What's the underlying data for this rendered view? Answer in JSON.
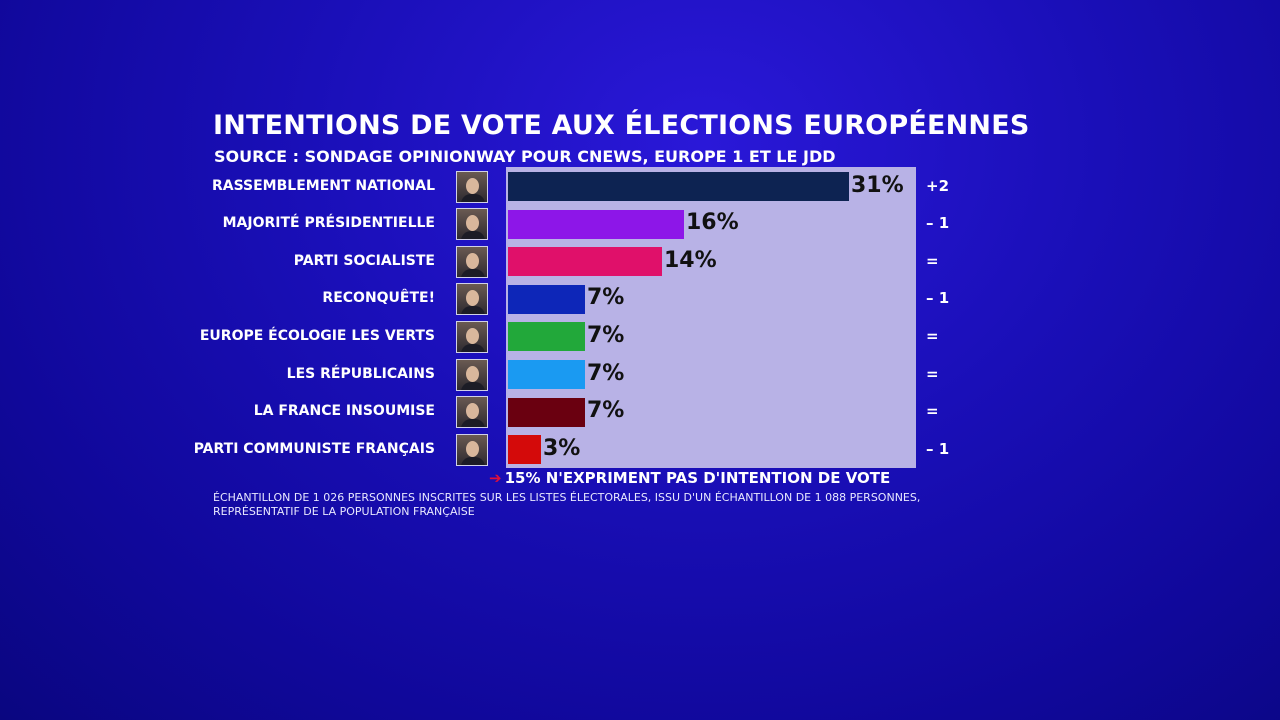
{
  "chart_data": {
    "type": "bar",
    "orientation": "horizontal",
    "title": "INTENTIONS DE VOTE AUX ÉLECTIONS EUROPÉENNES",
    "subtitle": "SOURCE : SONDAGE OPINIONWAY POUR CNEWS, EUROPE 1 ET LE JDD",
    "categories": [
      "RASSEMBLEMENT NATIONAL",
      "MAJORITÉ PRÉSIDENTIELLE",
      "PARTI SOCIALISTE",
      "RECONQUÊTE!",
      "EUROPE ÉCOLOGIE LES VERTS",
      "LES RÉPUBLICAINS",
      "LA FRANCE INSOUMISE",
      "PARTI COMMUNISTE FRANÇAIS"
    ],
    "values": [
      31,
      16,
      14,
      7,
      7,
      7,
      7,
      3
    ],
    "value_labels": [
      "31%",
      "16%",
      "14%",
      "7%",
      "7%",
      "7%",
      "7%",
      "3%"
    ],
    "changes": [
      "+2",
      "– 1",
      "=",
      "– 1",
      "=",
      "=",
      "=",
      "– 1"
    ],
    "colors": [
      "#0d2352",
      "#8d16e8",
      "#e0106a",
      "#0d26b8",
      "#22a83a",
      "#1a9af2",
      "#6a0010",
      "#d40a0a"
    ],
    "xlim": [
      0,
      36
    ],
    "grid": false,
    "note": "15% N'EXPRIMENT PAS D'INTENTION DE VOTE",
    "sample": "ÉCHANTILLON DE 1 026 PERSONNES INSCRITES SUR LES LISTES ÉLECTORALES, ISSU D'UN ÉCHANTILLON DE 1 088 PERSONNES, REPRÉSENTATIF DE LA POPULATION FRANÇAISE"
  },
  "colors": {
    "background": "#1a0fb8",
    "panel": "#b8b2e6",
    "note_arrow": "#e0103a"
  },
  "icons": {
    "note_arrow": "arrow-right-icon",
    "avatars": "candidate-portrait"
  }
}
